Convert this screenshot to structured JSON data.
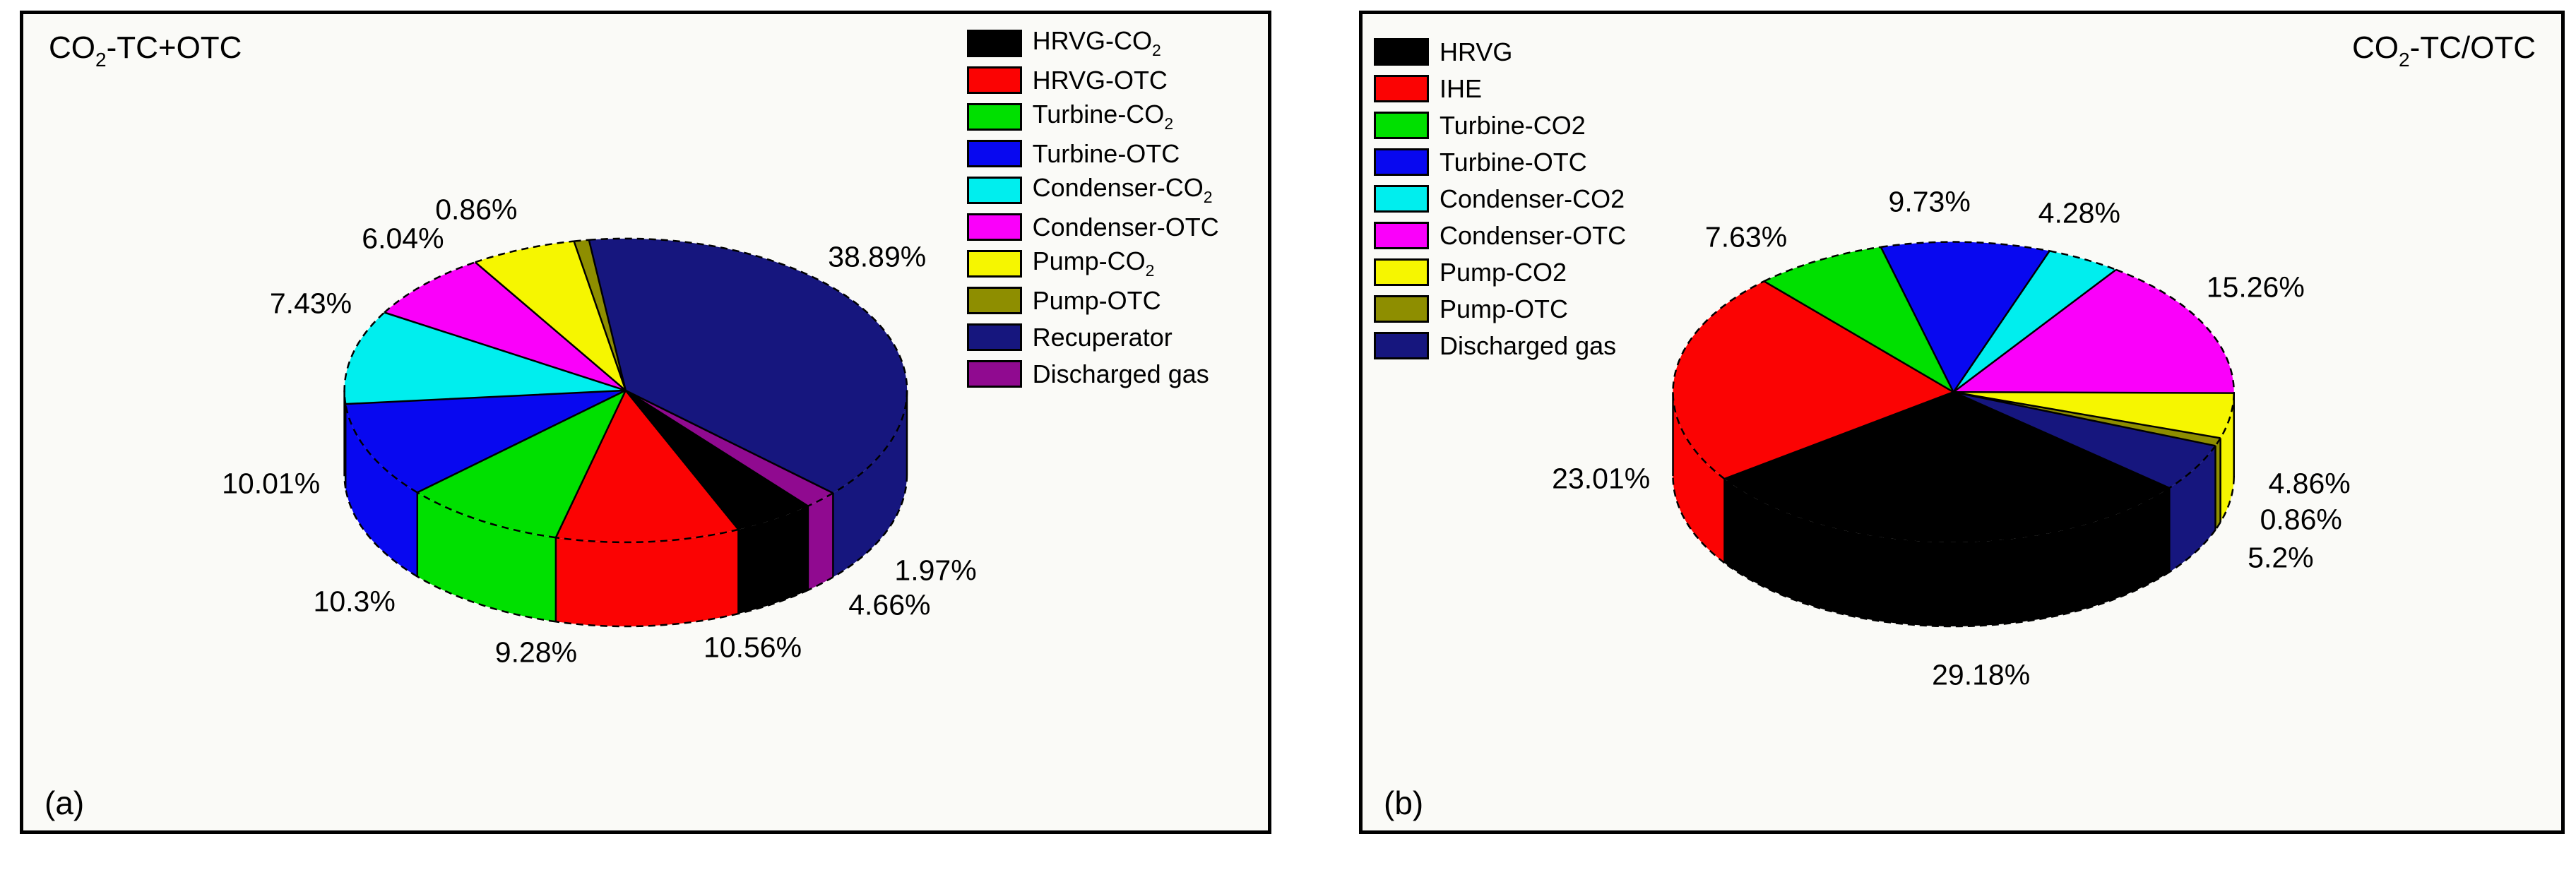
{
  "panels": [
    {
      "id": "a",
      "corner_label": "(a)",
      "title": {
        "base": "CO",
        "sub": "2",
        "rest": "-TC+OTC"
      },
      "chart_data": {
        "type": "pie",
        "style": "3d",
        "title": "CO2-TC+OTC",
        "unit": "%",
        "direction": "clockwise",
        "start_angle_deg": 97.5,
        "legend_side": "right",
        "geometry": {
          "cx_pct": 48.4,
          "cy_pct": 46.1,
          "rx_pct": 22.6,
          "ry_pct": 18.6,
          "depth_pct": 10.3
        },
        "wedge_order": [
          8,
          9,
          0,
          1,
          2,
          3,
          4,
          5,
          6,
          7
        ],
        "slices": [
          {
            "label": "HRVG-CO",
            "label_sub": "2",
            "value": 4.66,
            "pct_label": "4.66%",
            "color": "#000000",
            "label_pos": [
              69.6,
              72.4
            ]
          },
          {
            "label": "HRVG-OTC",
            "label_sub": "",
            "value": 10.56,
            "pct_label": "10.56%",
            "color": "#fb0303",
            "label_pos": [
              58.6,
              77.6
            ]
          },
          {
            "label": "Turbine-CO",
            "label_sub": "2",
            "value": 9.28,
            "pct_label": "9.28%",
            "color": "#00e000",
            "label_pos": [
              41.2,
              78.2
            ]
          },
          {
            "label": "Turbine-OTC",
            "label_sub": "",
            "value": 10.3,
            "pct_label": "10.3%",
            "color": "#0808f0",
            "label_pos": [
              26.6,
              72.0
            ]
          },
          {
            "label": "Condenser-CO",
            "label_sub": "2",
            "value": 10.01,
            "pct_label": "10.01%",
            "color": "#00eeee",
            "label_pos": [
              19.9,
              57.5
            ]
          },
          {
            "label": "Condenser-OTC",
            "label_sub": "",
            "value": 7.43,
            "pct_label": "7.43%",
            "color": "#fa00fa",
            "label_pos": [
              23.1,
              35.5
            ]
          },
          {
            "label": "Pump-CO",
            "label_sub": "2",
            "value": 6.04,
            "pct_label": "6.04%",
            "color": "#f6f600",
            "label_pos": [
              30.5,
              27.5
            ]
          },
          {
            "label": "Pump-OTC",
            "label_sub": "",
            "value": 0.86,
            "pct_label": "0.86%",
            "color": "#8e8e00",
            "label_pos": [
              36.4,
              24.0
            ]
          },
          {
            "label": "Recuperator",
            "label_sub": "",
            "value": 38.89,
            "pct_label": "38.89%",
            "color": "#16167e",
            "label_pos": [
              68.6,
              29.8
            ]
          },
          {
            "label": "Discharged gas",
            "label_sub": "",
            "value": 1.97,
            "pct_label": "1.97%",
            "color": "#900a90",
            "label_pos": [
              73.3,
              68.2
            ]
          }
        ]
      }
    },
    {
      "id": "b",
      "corner_label": "(b)",
      "title": {
        "base": "CO",
        "sub": "2",
        "rest": "-TC/OTC"
      },
      "chart_data": {
        "type": "pie",
        "style": "3d",
        "title": "CO2-TC/OTC",
        "unit": "%",
        "direction": "clockwise",
        "start_angle_deg": 105,
        "legend_side": "left",
        "geometry": {
          "cx_pct": 49.3,
          "cy_pct": 46.3,
          "rx_pct": 23.4,
          "ry_pct": 18.4,
          "depth_pct": 10.3
        },
        "wedge_order": [
          3,
          4,
          5,
          6,
          7,
          8,
          0,
          1,
          2
        ],
        "slices": [
          {
            "label": "HRVG",
            "label_sub": "",
            "value": 29.18,
            "pct_label": "29.18%",
            "color": "#000000",
            "label_pos": [
              51.6,
              81.0
            ]
          },
          {
            "label": "IHE",
            "label_sub": "",
            "value": 23.01,
            "pct_label": "23.01%",
            "color": "#fb0303",
            "label_pos": [
              19.9,
              56.9
            ]
          },
          {
            "label": "Turbine-CO2",
            "label_sub": "",
            "value": 7.63,
            "pct_label": "7.63%",
            "color": "#00e000",
            "label_pos": [
              32.0,
              27.3
            ]
          },
          {
            "label": "Turbine-OTC",
            "label_sub": "",
            "value": 9.73,
            "pct_label": "9.73%",
            "color": "#0808f0",
            "label_pos": [
              47.3,
              23.0
            ]
          },
          {
            "label": "Condenser-CO2",
            "label_sub": "",
            "value": 4.28,
            "pct_label": "4.28%",
            "color": "#00eeee",
            "label_pos": [
              59.8,
              24.4
            ]
          },
          {
            "label": "Condenser-OTC",
            "label_sub": "",
            "value": 15.26,
            "pct_label": "15.26%",
            "color": "#fa00fa",
            "label_pos": [
              74.5,
              33.5
            ]
          },
          {
            "label": "Pump-CO2",
            "label_sub": "",
            "value": 4.86,
            "pct_label": "4.86%",
            "color": "#f6f600",
            "label_pos": [
              79.0,
              57.5
            ]
          },
          {
            "label": "Pump-OTC",
            "label_sub": "",
            "value": 0.86,
            "pct_label": "0.86%",
            "color": "#8e8e00",
            "label_pos": [
              78.3,
              61.9
            ]
          },
          {
            "label": "Discharged gas",
            "label_sub": "",
            "value": 5.2,
            "pct_label": "5.2%",
            "color": "#16167e",
            "label_pos": [
              76.6,
              66.6
            ]
          }
        ]
      }
    }
  ]
}
